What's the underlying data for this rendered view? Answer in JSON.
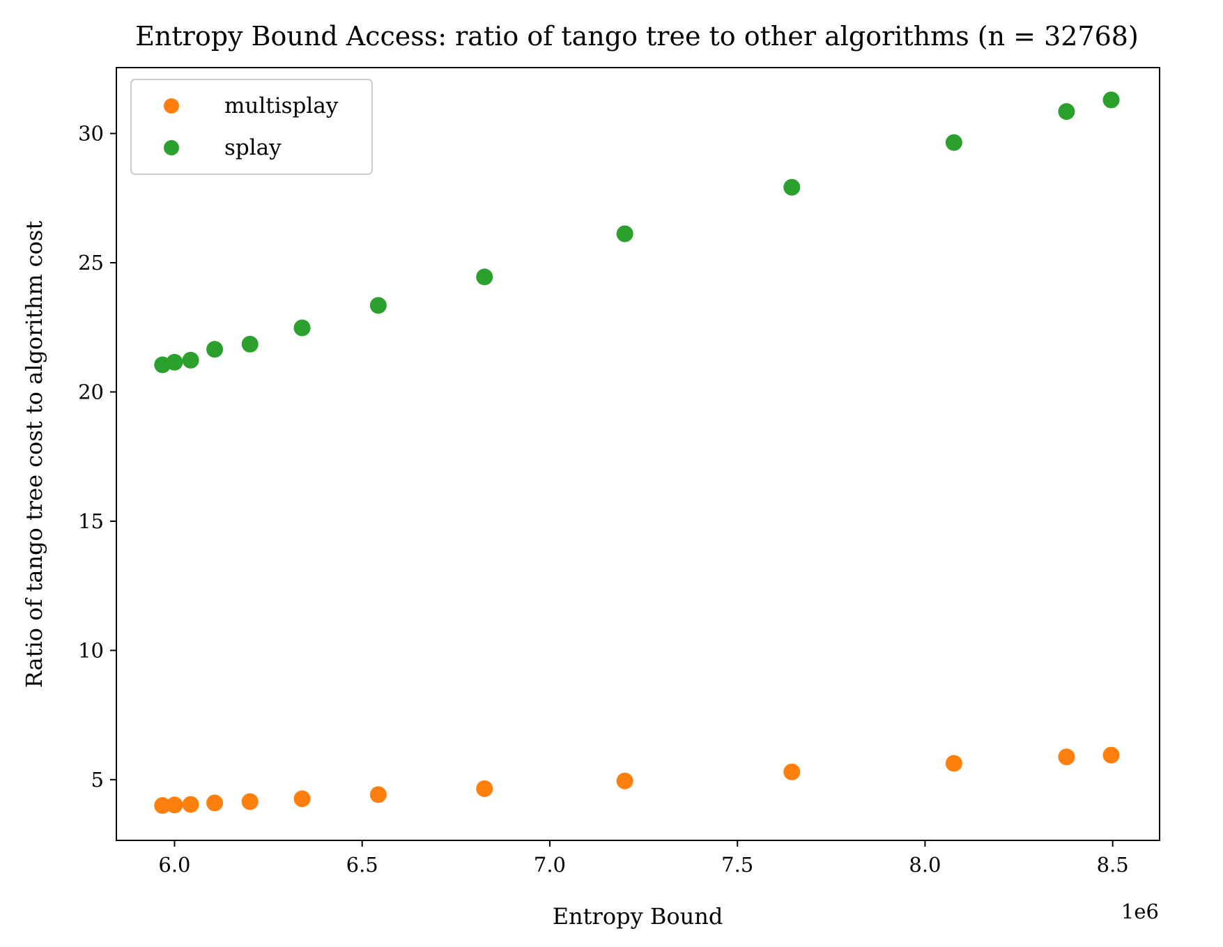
{
  "chart_data": {
    "type": "scatter",
    "title": "Entropy Bound Access: ratio of tango tree to other algorithms (n = 32768)",
    "xlabel": "Entropy Bound",
    "ylabel": "Ratio of tango tree cost to algorithm cost",
    "x_offset_label": "1e6",
    "xlim": [
      5.845,
      8.625
    ],
    "ylim": [
      2.65,
      32.55
    ],
    "x_ticks": [
      6.0,
      6.5,
      7.0,
      7.5,
      8.0,
      8.5
    ],
    "x_tick_labels": [
      "6.0",
      "6.5",
      "7.0",
      "7.5",
      "8.0",
      "8.5"
    ],
    "y_ticks": [
      5,
      10,
      15,
      20,
      25,
      30
    ],
    "y_tick_labels": [
      "5",
      "10",
      "15",
      "20",
      "25",
      "30"
    ],
    "grid": false,
    "legend_position": "upper-left",
    "series": [
      {
        "name": "multisplay",
        "color": "#ff7f0e",
        "x": [
          5.968,
          6.0,
          6.043,
          6.107,
          6.201,
          6.34,
          6.543,
          6.826,
          7.2,
          7.645,
          8.077,
          8.377,
          8.496
        ],
        "y": [
          4.0,
          4.02,
          4.04,
          4.1,
          4.15,
          4.26,
          4.42,
          4.65,
          4.95,
          5.3,
          5.63,
          5.88,
          5.95
        ]
      },
      {
        "name": "splay",
        "color": "#2ca02c",
        "x": [
          5.968,
          6.0,
          6.043,
          6.107,
          6.201,
          6.34,
          6.543,
          6.826,
          7.2,
          7.645,
          8.077,
          8.377,
          8.496
        ],
        "y": [
          21.05,
          21.15,
          21.23,
          21.65,
          21.85,
          22.48,
          23.35,
          24.45,
          26.12,
          27.92,
          29.65,
          30.85,
          31.3
        ]
      }
    ]
  }
}
